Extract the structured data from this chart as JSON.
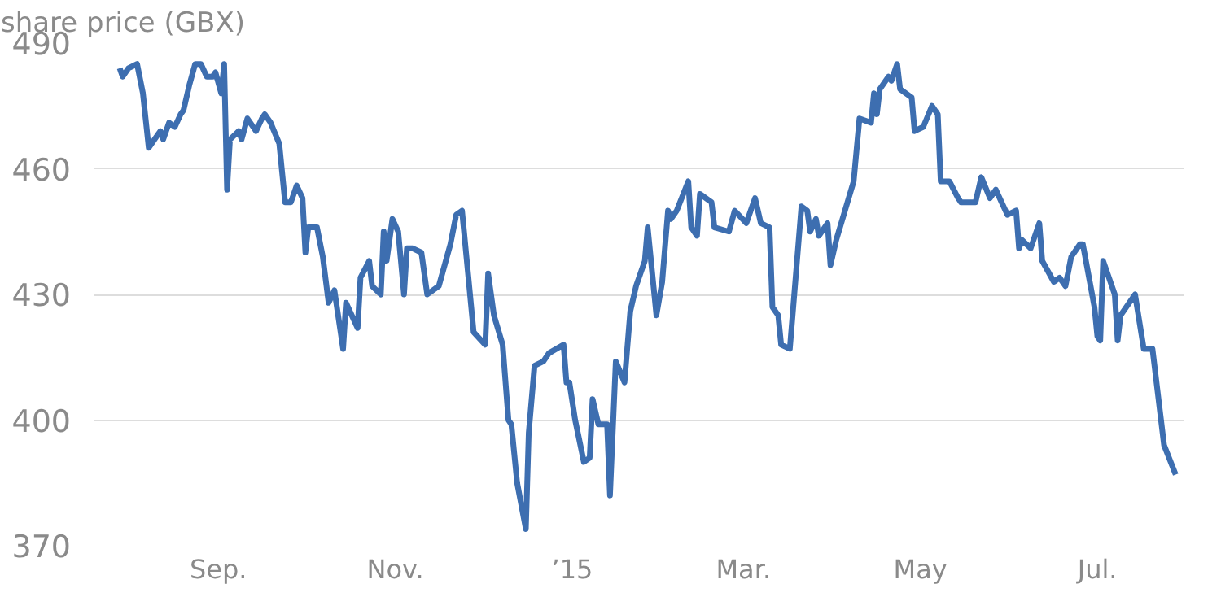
{
  "chart_data": {
    "type": "line",
    "title": "share price (GBX)",
    "x": [
      "2014-07-29",
      "2014-07-30",
      "2014-08-01",
      "2014-08-04",
      "2014-08-06",
      "2014-08-08",
      "2014-08-11",
      "2014-08-12",
      "2014-08-13",
      "2014-08-15",
      "2014-08-17",
      "2014-08-19",
      "2014-08-20",
      "2014-08-22",
      "2014-08-24",
      "2014-08-26",
      "2014-08-28",
      "2014-08-30",
      "2014-08-31",
      "2014-09-02",
      "2014-09-03",
      "2014-09-04",
      "2014-09-05",
      "2014-09-08",
      "2014-09-09",
      "2014-09-11",
      "2014-09-13",
      "2014-09-14",
      "2014-09-16",
      "2014-09-17",
      "2014-09-19",
      "2014-09-22",
      "2014-09-24",
      "2014-09-26",
      "2014-09-28",
      "2014-09-30",
      "2014-10-01",
      "2014-10-02",
      "2014-10-05",
      "2014-10-07",
      "2014-10-09",
      "2014-10-11",
      "2014-10-14",
      "2014-10-15",
      "2014-10-17",
      "2014-10-19",
      "2014-10-20",
      "2014-10-23",
      "2014-10-24",
      "2014-10-27",
      "2014-10-28",
      "2014-10-29",
      "2014-10-31",
      "2014-11-02",
      "2014-11-04",
      "2014-11-05",
      "2014-11-07",
      "2014-11-10",
      "2014-11-12",
      "2014-11-16",
      "2014-11-20",
      "2014-11-22",
      "2014-11-24",
      "2014-11-28",
      "2014-12-02",
      "2014-12-03",
      "2014-12-05",
      "2014-12-08",
      "2014-12-10",
      "2014-12-11",
      "2014-12-13",
      "2014-12-16",
      "2014-12-17",
      "2014-12-19",
      "2014-12-22",
      "2014-12-24",
      "2014-12-29",
      "2014-12-30",
      "2014-12-31",
      "2015-01-02",
      "2015-01-05",
      "2015-01-07",
      "2015-01-08",
      "2015-01-10",
      "2015-01-13",
      "2015-01-14",
      "2015-01-16",
      "2015-01-19",
      "2015-01-21",
      "2015-01-23",
      "2015-01-26",
      "2015-01-27",
      "2015-01-30",
      "2015-02-01",
      "2015-02-03",
      "2015-02-04",
      "2015-02-06",
      "2015-02-10",
      "2015-02-11",
      "2015-02-13",
      "2015-02-14",
      "2015-02-18",
      "2015-02-19",
      "2015-02-24",
      "2015-02-26",
      "2015-03-02",
      "2015-03-05",
      "2015-03-07",
      "2015-03-10",
      "2015-03-11",
      "2015-03-13",
      "2015-03-14",
      "2015-03-17",
      "2015-03-19",
      "2015-03-21",
      "2015-03-23",
      "2015-03-24",
      "2015-03-26",
      "2015-03-27",
      "2015-03-30",
      "2015-03-31",
      "2015-04-02",
      "2015-04-08",
      "2015-04-10",
      "2015-04-14",
      "2015-04-15",
      "2015-04-16",
      "2015-04-17",
      "2015-04-20",
      "2015-04-21",
      "2015-04-23",
      "2015-04-24",
      "2015-04-28",
      "2015-04-29",
      "2015-05-02",
      "2015-05-05",
      "2015-05-07",
      "2015-05-08",
      "2015-05-11",
      "2015-05-14",
      "2015-05-15",
      "2015-05-20",
      "2015-05-22",
      "2015-05-25",
      "2015-05-27",
      "2015-05-31",
      "2015-06-03",
      "2015-06-04",
      "2015-06-05",
      "2015-06-08",
      "2015-06-11",
      "2015-06-12",
      "2015-06-16",
      "2015-06-18",
      "2015-06-20",
      "2015-06-22",
      "2015-06-25",
      "2015-06-26",
      "2015-06-30",
      "2015-07-01",
      "2015-07-02",
      "2015-07-03",
      "2015-07-06",
      "2015-07-07",
      "2015-07-08",
      "2015-07-09",
      "2015-07-14",
      "2015-07-17",
      "2015-07-20",
      "2015-07-24",
      "2015-07-28"
    ],
    "series": [
      {
        "color": "#3d6eb0",
        "values": [
          484,
          482,
          484,
          485,
          478,
          465,
          468,
          469,
          467,
          471,
          470,
          473,
          474,
          480,
          485,
          485,
          482,
          482,
          483,
          478,
          485,
          455,
          467,
          469,
          467,
          472,
          470,
          469,
          472,
          473,
          471,
          466,
          452,
          452,
          456,
          453,
          440,
          446,
          446,
          439,
          428,
          431,
          417,
          428,
          425,
          422,
          434,
          438,
          432,
          430,
          445,
          438,
          448,
          445,
          430,
          441,
          441,
          440,
          430,
          432,
          442,
          449,
          450,
          421,
          418,
          435,
          425,
          418,
          400,
          399,
          385,
          374,
          397,
          413,
          414,
          416,
          418,
          409,
          409,
          400,
          390,
          391,
          405,
          399,
          399,
          382,
          414,
          409,
          426,
          432,
          438,
          446,
          425,
          433,
          450,
          448,
          450,
          457,
          446,
          444,
          454,
          452,
          446,
          445,
          450,
          447,
          453,
          447,
          446,
          427,
          425,
          418,
          417,
          434,
          451,
          450,
          445,
          448,
          444,
          447,
          437,
          443,
          457,
          472,
          471,
          478,
          473,
          479,
          482,
          481,
          485,
          479,
          477,
          469,
          470,
          475,
          473,
          457,
          457,
          453,
          452,
          452,
          458,
          453,
          455,
          449,
          450,
          441,
          443,
          441,
          447,
          438,
          433,
          434,
          432,
          439,
          442,
          442,
          427,
          420,
          419,
          438,
          432,
          430,
          419,
          425,
          430,
          417,
          417,
          394,
          387
        ]
      }
    ],
    "xlim": [
      "2014-07-20",
      "2015-07-31"
    ],
    "xticks": [
      {
        "value": "2014-09-01",
        "label": "Sep."
      },
      {
        "value": "2014-11-01",
        "label": "Nov."
      },
      {
        "value": "2015-01-01",
        "label": "’15"
      },
      {
        "value": "2015-03-01",
        "label": "Mar."
      },
      {
        "value": "2015-05-01",
        "label": "May"
      },
      {
        "value": "2015-07-01",
        "label": "Jul."
      }
    ],
    "ylim": [
      370,
      490
    ],
    "yticks": [
      370,
      400,
      430,
      460,
      490
    ],
    "grid": "y",
    "line_style": "solid"
  }
}
